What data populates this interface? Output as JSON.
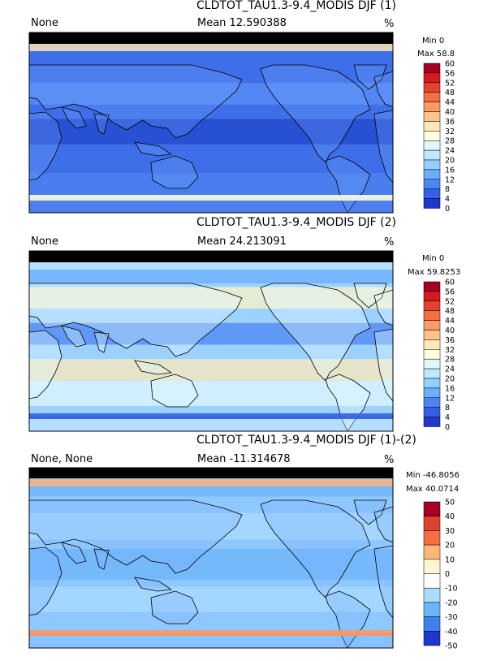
{
  "chart_data": [
    {
      "type": "heatmap",
      "title": "CLDTOT_TAU1.3-9.4_MODIS DJF (1)",
      "left_label": "None",
      "mean_label": "Mean  12.590388",
      "units": "%",
      "min_label": "Min 0",
      "max_label": "Max 58.8",
      "colorbar_ticks": [
        "60",
        "56",
        "52",
        "48",
        "44",
        "40",
        "36",
        "32",
        "28",
        "24",
        "20",
        "16",
        "12",
        "8",
        "4",
        "0"
      ],
      "colorbar_colors": [
        "#a50026",
        "#d7191c",
        "#e5412e",
        "#f46d43",
        "#fb9a62",
        "#fdc38a",
        "#fee8b5",
        "#ffffe0",
        "#e0f8ff",
        "#bde9ff",
        "#93d0ff",
        "#6aaefc",
        "#4b86f2",
        "#3560e6",
        "#1f37cc"
      ]
    },
    {
      "type": "heatmap",
      "title": "CLDTOT_TAU1.3-9.4_MODIS DJF (2)",
      "left_label": "None",
      "mean_label": "Mean  24.213091",
      "units": "%",
      "min_label": "Min 0",
      "max_label": "Max 59.8253",
      "colorbar_ticks": [
        "60",
        "56",
        "52",
        "48",
        "44",
        "40",
        "36",
        "32",
        "28",
        "24",
        "20",
        "16",
        "12",
        "8",
        "4",
        "0"
      ],
      "colorbar_colors": [
        "#a50026",
        "#d7191c",
        "#e5412e",
        "#f46d43",
        "#fb9a62",
        "#fdc38a",
        "#fee8b5",
        "#ffffe0",
        "#e0f8ff",
        "#bde9ff",
        "#93d0ff",
        "#6aaefc",
        "#4b86f2",
        "#3560e6",
        "#1f37cc"
      ]
    },
    {
      "type": "heatmap",
      "title": "CLDTOT_TAU1.3-9.4_MODIS DJF (1)-(2)",
      "left_label": "None, None",
      "mean_label": "Mean  -11.314678",
      "units": "%",
      "min_label": "Min -46.8056",
      "max_label": "Max 40.0714",
      "colorbar_ticks": [
        "50",
        "40",
        "30",
        "20",
        "10",
        "0",
        "-10",
        "-20",
        "-30",
        "-40",
        "-50"
      ],
      "colorbar_colors": [
        "#a50026",
        "#e0412e",
        "#f46d43",
        "#fdb57a",
        "#fff6d0",
        "#ffffff",
        "#a9dcff",
        "#6bb5fa",
        "#3f7fee",
        "#1f37cc"
      ]
    }
  ]
}
